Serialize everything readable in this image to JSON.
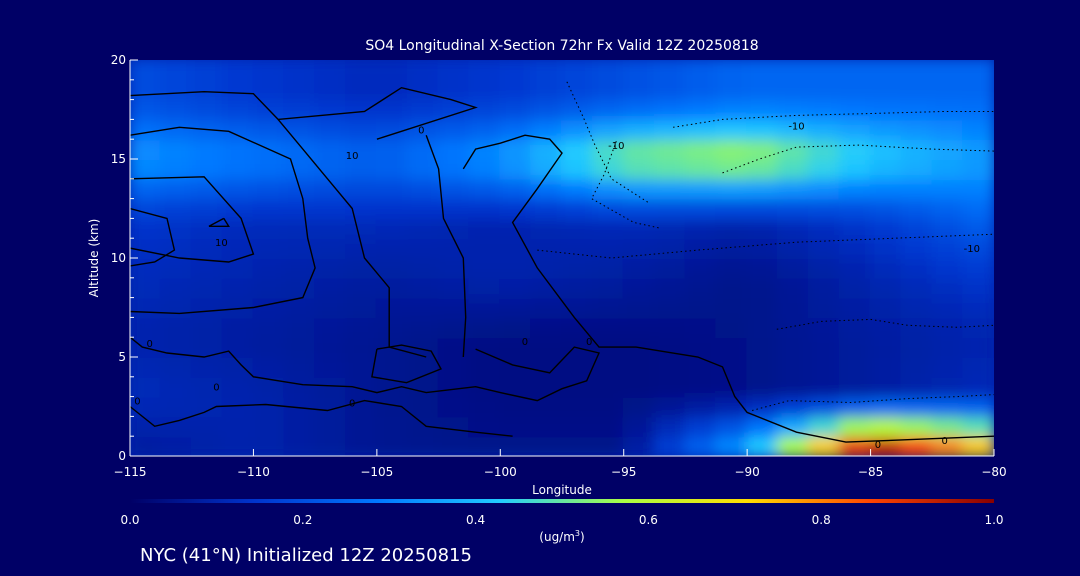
{
  "chart_data": {
    "type": "heatmap",
    "title": "SO4 Longitudinal X-Section 72hr  Fx Valid 12Z 20250818",
    "xlabel": "Longitude",
    "ylabel": "Altitude (km)",
    "x_range": [
      -115,
      -80
    ],
    "y_range": [
      0,
      20
    ],
    "x_ticks": [
      "-115",
      "-110",
      "-105",
      "-100",
      "-95",
      "-90",
      "-85",
      "-80"
    ],
    "y_ticks": [
      "0",
      "5",
      "10",
      "15",
      "20"
    ],
    "field_samples": {
      "x": [
        -115,
        -110,
        -105,
        -100,
        -95,
        -90,
        -85,
        -80
      ],
      "y": [
        0.5,
        3,
        6,
        9,
        12,
        15,
        18
      ],
      "values": [
        [
          0.08,
          0.1,
          0.06,
          0.05,
          0.05,
          0.35,
          0.95,
          0.7
        ],
        [
          0.12,
          0.1,
          0.06,
          0.04,
          0.04,
          0.05,
          0.08,
          0.12
        ],
        [
          0.1,
          0.08,
          0.06,
          0.04,
          0.04,
          0.05,
          0.08,
          0.1
        ],
        [
          0.12,
          0.1,
          0.08,
          0.1,
          0.08,
          0.05,
          0.1,
          0.15
        ],
        [
          0.15,
          0.12,
          0.12,
          0.1,
          0.12,
          0.1,
          0.15,
          0.25
        ],
        [
          0.35,
          0.3,
          0.25,
          0.35,
          0.55,
          0.6,
          0.45,
          0.35
        ],
        [
          0.2,
          0.15,
          0.12,
          0.15,
          0.2,
          0.25,
          0.25,
          0.25
        ]
      ]
    },
    "contour_labels": [
      "0",
      "-10",
      "-10",
      "-10",
      "10",
      "0",
      "0",
      "0",
      "0",
      "10",
      "0",
      "0",
      "0",
      "0"
    ],
    "colorbar": {
      "ticks": [
        "0.0",
        "0.2",
        "0.4",
        "0.6",
        "0.8",
        "1.0"
      ],
      "range": [
        0.0,
        1.0
      ],
      "unit": "(ug/m",
      "unit_sup": "3",
      "unit_close": ")",
      "colors": [
        "#000066",
        "#0033cc",
        "#0077ff",
        "#22ccff",
        "#aaff44",
        "#ffdd00",
        "#ff4400",
        "#880000"
      ]
    },
    "footer": "NYC (41°N) Initialized 12Z 20250815",
    "grid": false
  }
}
